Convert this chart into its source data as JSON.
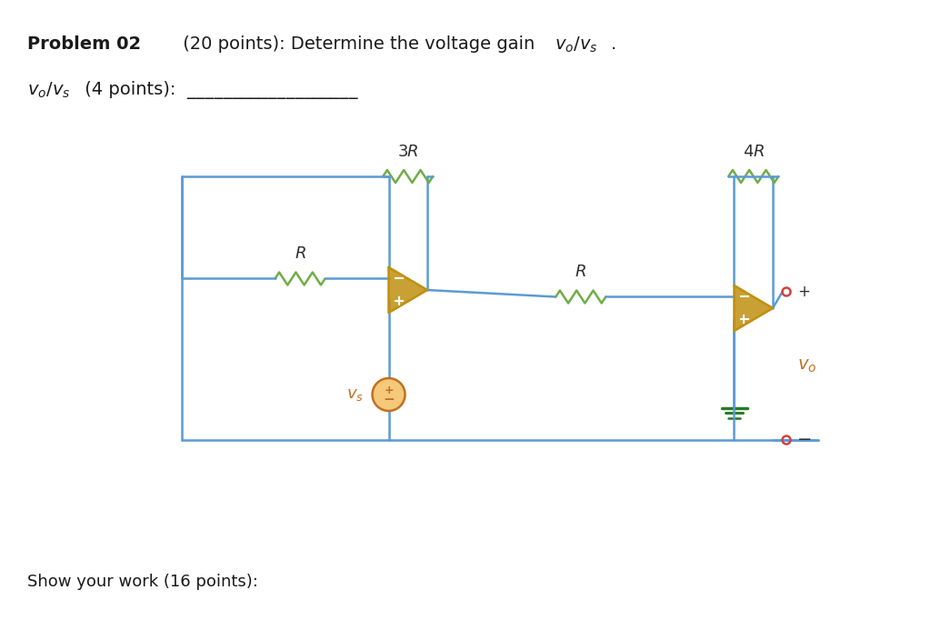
{
  "title_text": "Problem 02",
  "title_bold": true,
  "title_rest": " (20 points): Determine the voltage gain ",
  "title_formula": "v₀/vs.",
  "subtitle_formula": "v₀/vs",
  "subtitle_rest": " (4 points): ",
  "show_work": "Show your work (16 points):",
  "bg_color": "#ffffff",
  "wire_color": "#5b9bd5",
  "resistor_color": "#70ad47",
  "opamp_color": "#c09010",
  "source_color": "#c07020",
  "text_color": "#1a1a1a",
  "label_color": "#2f2f2f"
}
